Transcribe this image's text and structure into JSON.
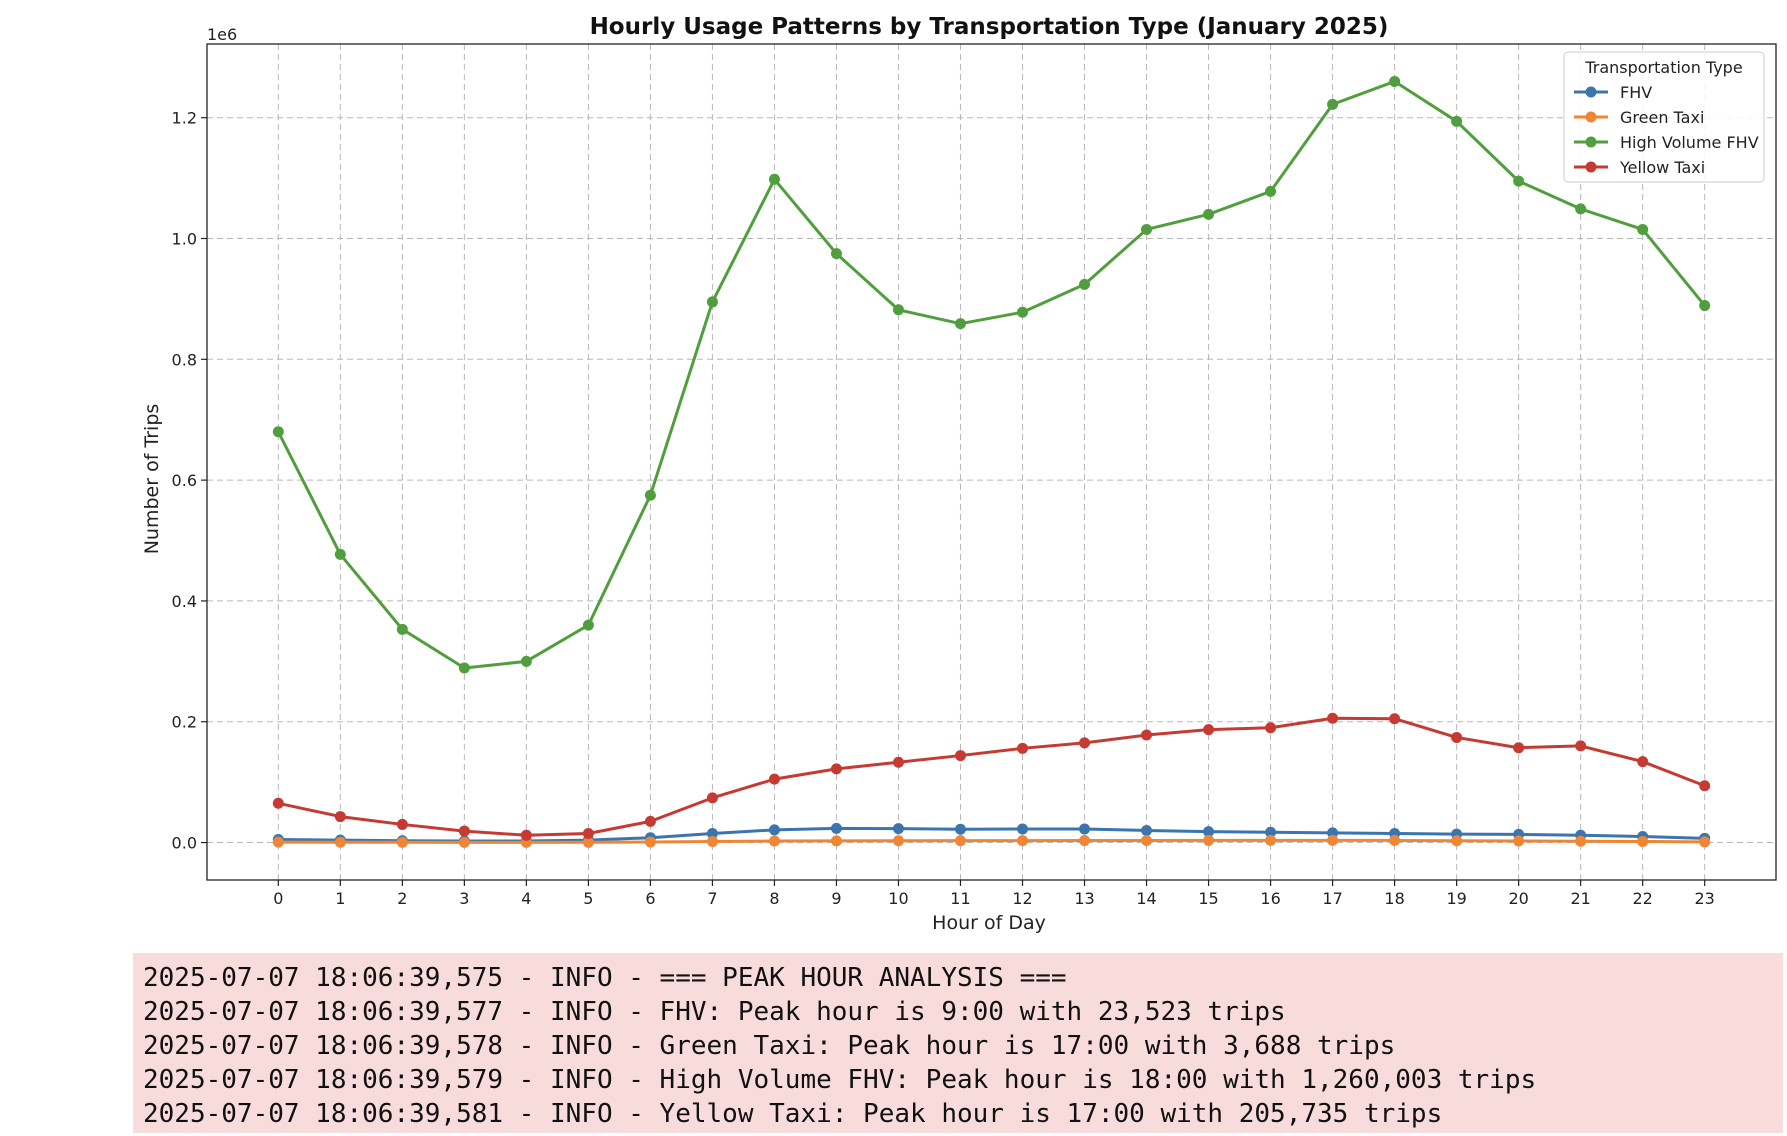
{
  "chart_data": {
    "type": "line",
    "title": "Hourly Usage Patterns by Transportation Type (January 2025)",
    "xlabel": "Hour of Day",
    "ylabel": "Number of Trips",
    "y_scale_label": "1e6",
    "x": [
      0,
      1,
      2,
      3,
      4,
      5,
      6,
      7,
      8,
      9,
      10,
      11,
      12,
      13,
      14,
      15,
      16,
      17,
      18,
      19,
      20,
      21,
      22,
      23
    ],
    "xlim": [
      -1.15,
      24.15
    ],
    "ylim": [
      -62000,
      1322000
    ],
    "yticks": [
      0.0,
      0.2,
      0.4,
      0.6,
      0.8,
      1.0,
      1.2
    ],
    "ytick_labels": [
      "0.0",
      "0.2",
      "0.4",
      "0.6",
      "0.8",
      "1.0",
      "1.2"
    ],
    "grid": true,
    "legend": {
      "title": "Transportation Type",
      "placement": "top-right"
    },
    "series": [
      {
        "name": "FHV",
        "color": "#3b75af",
        "values": [
          5000,
          4000,
          3000,
          2500,
          2500,
          4000,
          8000,
          15000,
          21000,
          23523,
          23000,
          22000,
          22500,
          22500,
          20000,
          18000,
          17000,
          16000,
          15000,
          14000,
          13500,
          12000,
          10000,
          7000
        ]
      },
      {
        "name": "Green Taxi",
        "color": "#ef8636",
        "values": [
          800,
          500,
          400,
          300,
          300,
          400,
          900,
          1800,
          2500,
          2800,
          3000,
          3100,
          3200,
          3300,
          3400,
          3500,
          3600,
          3688,
          3500,
          3000,
          2500,
          2200,
          1800,
          1200
        ]
      },
      {
        "name": "High Volume FHV",
        "color": "#519e3e",
        "values": [
          680000,
          477000,
          353000,
          289000,
          300000,
          360000,
          575000,
          895000,
          1098000,
          975000,
          882000,
          859000,
          878000,
          924000,
          1015000,
          1040000,
          1078000,
          1222000,
          1260003,
          1194000,
          1095000,
          1049000,
          1015000,
          889000
        ]
      },
      {
        "name": "Yellow Taxi",
        "color": "#c53a32",
        "values": [
          65000,
          43000,
          30000,
          19000,
          12000,
          15000,
          35000,
          74000,
          105000,
          122000,
          133000,
          144000,
          156000,
          165000,
          178000,
          187000,
          190000,
          205735,
          205000,
          174000,
          157000,
          160000,
          134000,
          94000
        ]
      }
    ]
  },
  "log": {
    "lines": [
      "2025-07-07 18:06:39,575 - INFO - === PEAK HOUR ANALYSIS ===",
      "2025-07-07 18:06:39,577 - INFO - FHV: Peak hour is 9:00 with 23,523 trips",
      "2025-07-07 18:06:39,578 - INFO - Green Taxi: Peak hour is 17:00 with 3,688 trips",
      "2025-07-07 18:06:39,579 - INFO - High Volume FHV: Peak hour is 18:00 with 1,260,003 trips",
      "2025-07-07 18:06:39,581 - INFO - Yellow Taxi: Peak hour is 17:00 with 205,735 trips"
    ]
  }
}
